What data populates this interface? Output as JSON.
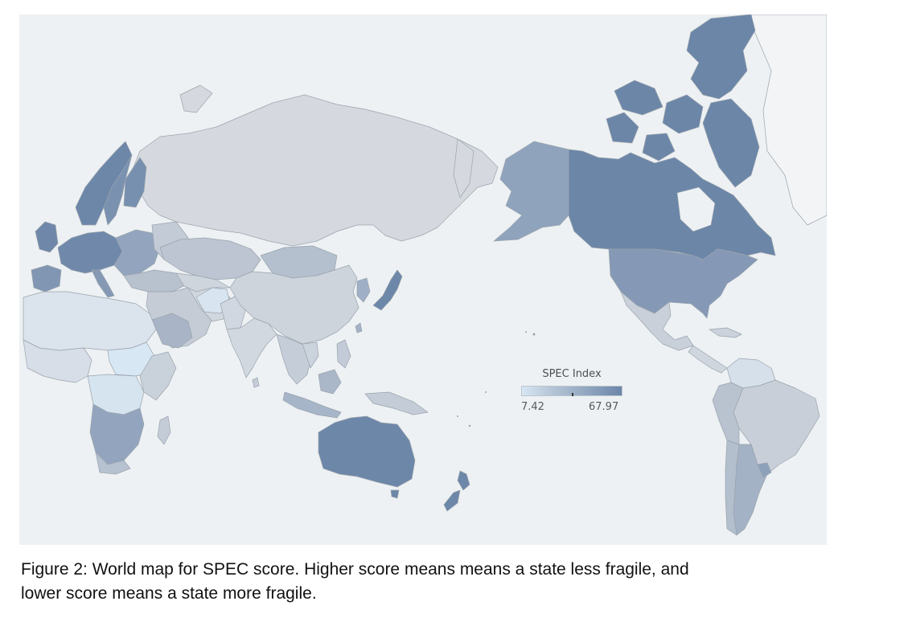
{
  "map": {
    "projection": "Pacific-centered world map",
    "base_color": "#edf1f3",
    "color_scale": {
      "min_color": "#d6e6f3",
      "max_color": "#6c86a8"
    },
    "legend": {
      "title": "SPEC Index",
      "min_label": "7.42",
      "max_label": "67.97",
      "placement": "center-right"
    },
    "regions": [
      {
        "name": "Canada",
        "shade": "high"
      },
      {
        "name": "Arctic islands",
        "shade": "high"
      },
      {
        "name": "Alaska",
        "shade": "medium-high"
      },
      {
        "name": "United States",
        "shade": "medium-high"
      },
      {
        "name": "Mexico and Central America",
        "shade": "low-medium"
      },
      {
        "name": "Brazil",
        "shade": "low-medium"
      },
      {
        "name": "Western South America",
        "shade": "low-medium"
      },
      {
        "name": "Argentina",
        "shade": "medium"
      },
      {
        "name": "Russia",
        "shade": "low-medium"
      },
      {
        "name": "China",
        "shade": "low-medium"
      },
      {
        "name": "Mongolia",
        "shade": "medium"
      },
      {
        "name": "Kazakhstan",
        "shade": "medium"
      },
      {
        "name": "Japan",
        "shade": "high"
      },
      {
        "name": "Korea",
        "shade": "medium-high"
      },
      {
        "name": "India",
        "shade": "low-medium"
      },
      {
        "name": "Southeast Asia",
        "shade": "low-medium"
      },
      {
        "name": "Indonesia",
        "shade": "medium"
      },
      {
        "name": "Australia",
        "shade": "high"
      },
      {
        "name": "New Zealand",
        "shade": "high"
      },
      {
        "name": "Scandinavia",
        "shade": "high"
      },
      {
        "name": "Western Europe",
        "shade": "high"
      },
      {
        "name": "Eastern Europe",
        "shade": "medium-high"
      },
      {
        "name": "Middle East",
        "shade": "low-medium"
      },
      {
        "name": "Afghanistan",
        "shade": "low"
      },
      {
        "name": "North Africa",
        "shade": "low"
      },
      {
        "name": "Central Africa",
        "shade": "low"
      },
      {
        "name": "Southern Africa",
        "shade": "medium"
      },
      {
        "name": "Madagascar",
        "shade": "low-medium"
      },
      {
        "name": "Greenland",
        "shade": "none"
      }
    ]
  },
  "caption": {
    "line1": "Figure 2: World map for SPEC score. Higher score means means a state less fragile, and",
    "line2": "lower score means a state more fragile."
  }
}
